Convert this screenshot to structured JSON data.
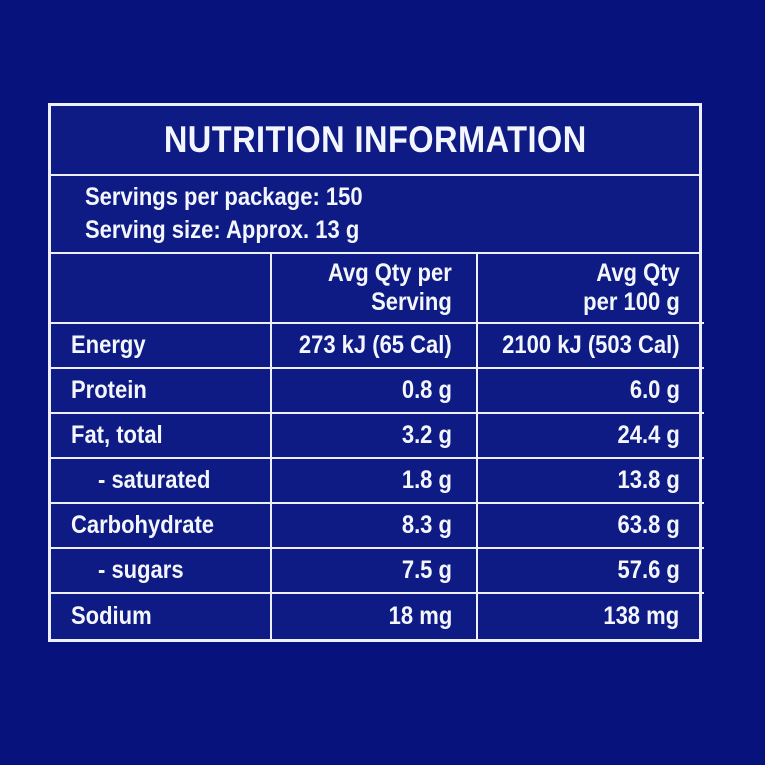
{
  "title": "NUTRITION INFORMATION",
  "servings": {
    "per_package": "Servings per package: 150",
    "size": "Serving size: Approx. 13 g"
  },
  "table": {
    "header": {
      "col2_line1": "Avg Qty per",
      "col2_line2": "Serving",
      "col3_line1": "Avg Qty",
      "col3_line2": "per 100 g"
    },
    "rows": [
      {
        "label": "Energy",
        "per_serving": "273 kJ (65 Cal)",
        "per_100g": "2100 kJ (503 Cal)",
        "indent": false
      },
      {
        "label": "Protein",
        "per_serving": "0.8 g",
        "per_100g": "6.0 g",
        "indent": false
      },
      {
        "label": "Fat, total",
        "per_serving": "3.2 g",
        "per_100g": "24.4 g",
        "indent": false
      },
      {
        "label": "- saturated",
        "per_serving": "1.8 g",
        "per_100g": "13.8 g",
        "indent": true
      },
      {
        "label": "Carbohydrate",
        "per_serving": "8.3 g",
        "per_100g": "63.8 g",
        "indent": false
      },
      {
        "label": "- sugars",
        "per_serving": "7.5 g",
        "per_100g": "57.6 g",
        "indent": true
      },
      {
        "label": "Sodium",
        "per_serving": "18 mg",
        "per_100g": "138 mg",
        "indent": false
      }
    ]
  },
  "colors": {
    "page_background": "#07127c",
    "panel_background": "#0e1b85",
    "border": "#edf0fa",
    "text": "#f4f6fd"
  }
}
